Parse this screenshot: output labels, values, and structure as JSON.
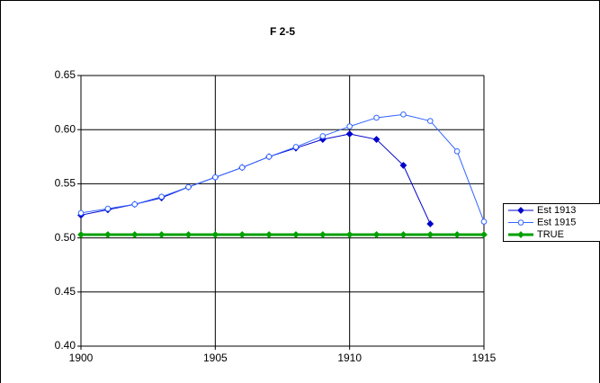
{
  "chart_data": {
    "type": "line",
    "title": "F 2-5",
    "x": [
      1900,
      1901,
      1902,
      1903,
      1904,
      1905,
      1906,
      1907,
      1908,
      1909,
      1910,
      1911,
      1912,
      1913,
      1914,
      1915
    ],
    "xlim": [
      1900,
      1915
    ],
    "xticks": [
      1900,
      1905,
      1910,
      1915
    ],
    "ylim": [
      0.4,
      0.65
    ],
    "yticks": [
      {
        "value": 0.4,
        "label": "0.40"
      },
      {
        "value": 0.45,
        "label": "0.45"
      },
      {
        "value": 0.5,
        "label": "0.50"
      },
      {
        "value": 0.55,
        "label": "0.55"
      },
      {
        "value": 0.6,
        "label": "0.60"
      },
      {
        "value": 0.65,
        "label": "0.65"
      }
    ],
    "grid": true,
    "legend": "right",
    "series": [
      {
        "name": "Est 1913",
        "color": "#0000cc",
        "marker": "diamond",
        "values": [
          0.521,
          0.526,
          0.531,
          0.537,
          0.547,
          0.556,
          0.565,
          0.575,
          0.583,
          0.591,
          0.596,
          0.591,
          0.567,
          0.513,
          null,
          null
        ]
      },
      {
        "name": "Est 1915",
        "color": "#3366ff",
        "marker": "circle",
        "values": [
          0.523,
          0.527,
          0.531,
          0.538,
          0.547,
          0.556,
          0.565,
          0.575,
          0.584,
          0.594,
          0.603,
          0.611,
          0.614,
          0.608,
          0.58,
          0.515
        ]
      },
      {
        "name": "TRUE",
        "color": "#00a000",
        "marker": "diamond",
        "values": [
          0.503,
          0.503,
          0.503,
          0.503,
          0.503,
          0.503,
          0.503,
          0.503,
          0.503,
          0.503,
          0.503,
          0.503,
          0.503,
          0.503,
          0.503,
          0.503
        ]
      }
    ]
  }
}
